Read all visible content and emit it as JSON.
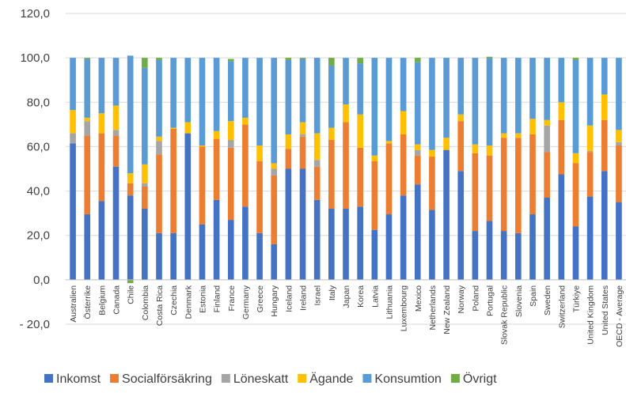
{
  "chart_data": {
    "type": "bar",
    "stacked": true,
    "title": "",
    "xlabel": "",
    "ylabel": "",
    "ylim": [
      -20,
      120
    ],
    "ytick_step": 20,
    "ytick_labels": [
      "- 20,0",
      "0,0",
      "20,0",
      "40,0",
      "60,0",
      "80,0",
      "100,0",
      "120,0"
    ],
    "grid": true,
    "legend_position": "bottom",
    "categories": [
      "Australien",
      "Österrike",
      "Belgium",
      "Canada",
      "Chile",
      "Colombia",
      "Costa Rica",
      "Czechia",
      "Denmark",
      "Estonia",
      "Finland",
      "France",
      "Germany",
      "Greece",
      "Hungary",
      "Iceland",
      "Ireland",
      "Israel",
      "Italy",
      "Japan",
      "Korea",
      "Latvia",
      "Lithuania",
      "Luxembourg",
      "Mexico",
      "Netherlands",
      "New Zealand",
      "Norway",
      "Poland",
      "Portugal",
      "Slovak Republic",
      "Slovenia",
      "Spain",
      "Sweden",
      "Switzerland",
      "Türkiye",
      "United Kingdom",
      "United States",
      "OECD - Average"
    ],
    "series": [
      {
        "name": "Inkomst",
        "color": "#4472C4",
        "values": [
          61.5,
          29.5,
          35.5,
          51,
          38,
          32,
          21,
          21,
          66,
          25,
          36,
          27,
          33,
          21,
          16,
          50,
          50,
          36,
          32,
          32,
          33,
          22.5,
          29.5,
          38,
          43,
          31.5,
          58.5,
          49,
          22,
          26.5,
          22,
          21,
          29.5,
          37,
          47.5,
          24,
          37.5,
          49,
          35
        ]
      },
      {
        "name": "Socialförsäkring",
        "color": "#ED7D31",
        "values": [
          0,
          35.5,
          30.5,
          14,
          5.5,
          10,
          35.5,
          47,
          0,
          35,
          27.5,
          32.5,
          37,
          32.5,
          31,
          9,
          14.5,
          15,
          31,
          39,
          26.5,
          31,
          32,
          27.5,
          13,
          24,
          0,
          22.5,
          35,
          29.5,
          42,
          43,
          36,
          20.5,
          24.5,
          28.5,
          20,
          23,
          25.5
        ]
      },
      {
        "name": "Löneskatt",
        "color": "#A5A5A5",
        "values": [
          4.5,
          6.5,
          0,
          2.5,
          0,
          1.5,
          6,
          0,
          0,
          0,
          0,
          3.5,
          0,
          0,
          3,
          0,
          1,
          3,
          0,
          0,
          0,
          0,
          0,
          0,
          2.5,
          0,
          0,
          0,
          0,
          0,
          0,
          0,
          0,
          12,
          0,
          0,
          0.5,
          0,
          1.5
        ]
      },
      {
        "name": "Ägande",
        "color": "#FFC000",
        "values": [
          10.5,
          1.5,
          9,
          11,
          4.5,
          8.5,
          2,
          0.5,
          5,
          0.5,
          3.5,
          8.5,
          3,
          7,
          2.5,
          6.5,
          5.5,
          12,
          5.5,
          8,
          15,
          2.5,
          1,
          10.5,
          2.5,
          3,
          5.5,
          3,
          4,
          4.5,
          2,
          2,
          7,
          2.5,
          8,
          4.5,
          11.5,
          11.5,
          5.5
        ]
      },
      {
        "name": "Konsumtion",
        "color": "#5B9BD5",
        "values": [
          23.5,
          26.5,
          25,
          21.5,
          53,
          43.5,
          34.5,
          31.5,
          29,
          39.5,
          33,
          27,
          27,
          39.5,
          47.5,
          33.5,
          28.5,
          34,
          28,
          21,
          23,
          44,
          37.5,
          24,
          37,
          41.5,
          36,
          25.5,
          39,
          39.5,
          34,
          34,
          27.5,
          28,
          20,
          42,
          30.5,
          16.5,
          32.5
        ]
      },
      {
        "name": "Övrigt",
        "color": "#70AD47",
        "values": [
          0,
          0.5,
          0,
          0,
          -1.5,
          4.5,
          1,
          0,
          0,
          0,
          0,
          1,
          0,
          0,
          0,
          1,
          0.5,
          0,
          3.5,
          0,
          2.5,
          0,
          0,
          0,
          2,
          0,
          0,
          0,
          0,
          0.5,
          0,
          0,
          0,
          0,
          0,
          1,
          0,
          0,
          0
        ]
      }
    ]
  }
}
